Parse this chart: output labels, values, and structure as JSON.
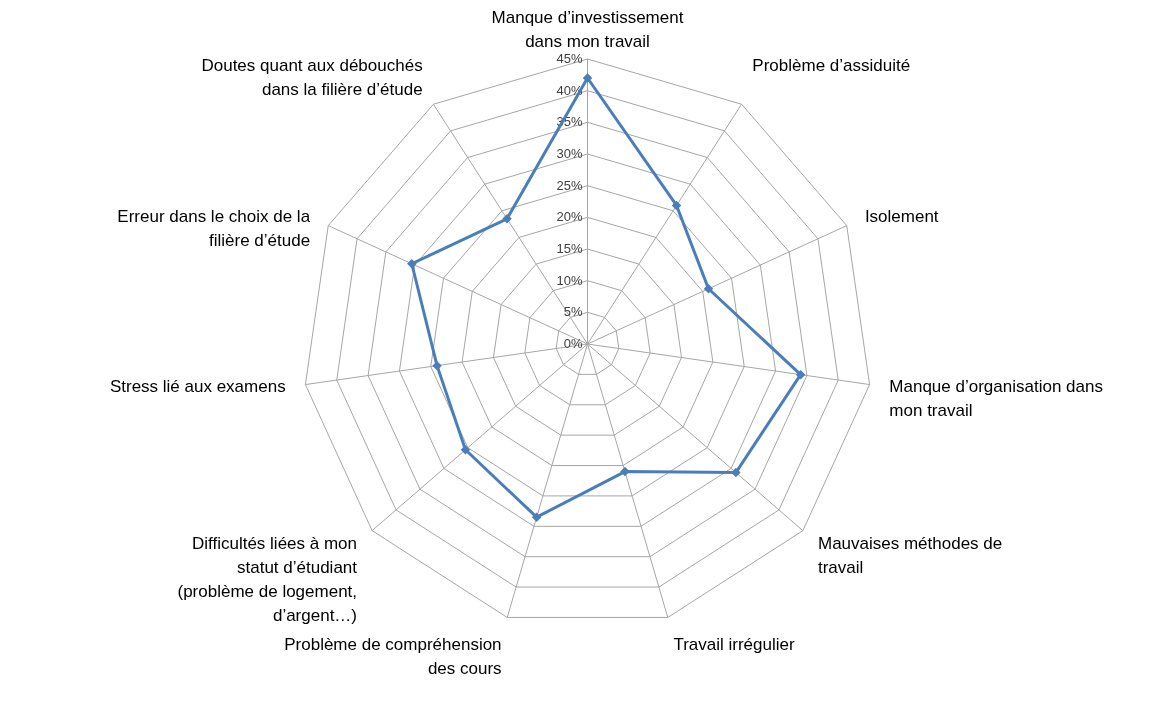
{
  "chart_data": {
    "type": "radar",
    "categories": [
      "Manque d’investissement dans mon travail",
      "Problème d’assiduité",
      "Isolement",
      "Manque d’organisation dans mon travail",
      "Mauvaises méthodes de travail",
      "Travail irrégulier",
      "Problème de compréhension des cours",
      "Difficultés liées à mon statut d’étudiant (problème de logement, d’argent…)",
      "Stress lié aux examens",
      "Erreur dans le choix de la filière d’étude",
      "Doutes quant aux débouchés dans la filière d’étude"
    ],
    "series": [
      {
        "color": "#4a7ebb",
        "values": [
          42,
          26,
          21,
          34,
          31,
          21,
          28.5,
          25.5,
          24,
          30.5,
          23.5
        ]
      }
    ],
    "ylim": [
      0,
      45
    ],
    "yticks": [
      {
        "value": 0,
        "label": "0%"
      },
      {
        "value": 5,
        "label": "5%"
      },
      {
        "value": 10,
        "label": "10%"
      },
      {
        "value": 15,
        "label": "15%"
      },
      {
        "value": 20,
        "label": "20%"
      },
      {
        "value": 25,
        "label": "25%"
      },
      {
        "value": 30,
        "label": "30%"
      },
      {
        "value": 35,
        "label": "35%"
      },
      {
        "value": 40,
        "label": "40%"
      },
      {
        "value": 45,
        "label": "45%"
      }
    ],
    "grid": true,
    "marker": "diamond",
    "line_style": "solid"
  }
}
